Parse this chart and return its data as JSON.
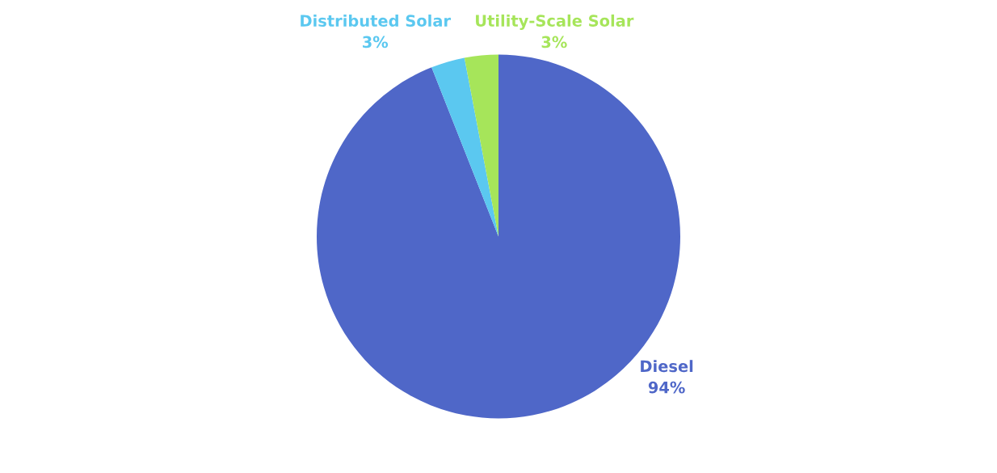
{
  "chart_data": {
    "type": "pie",
    "categories": [
      "Diesel",
      "Distributed Solar",
      "Utility-Scale Solar"
    ],
    "values": [
      94,
      3,
      3
    ],
    "value_labels": [
      "94%",
      "3%",
      "3%"
    ],
    "colors": [
      "#4f67c8",
      "#5bc8f0",
      "#a6e55a"
    ]
  }
}
